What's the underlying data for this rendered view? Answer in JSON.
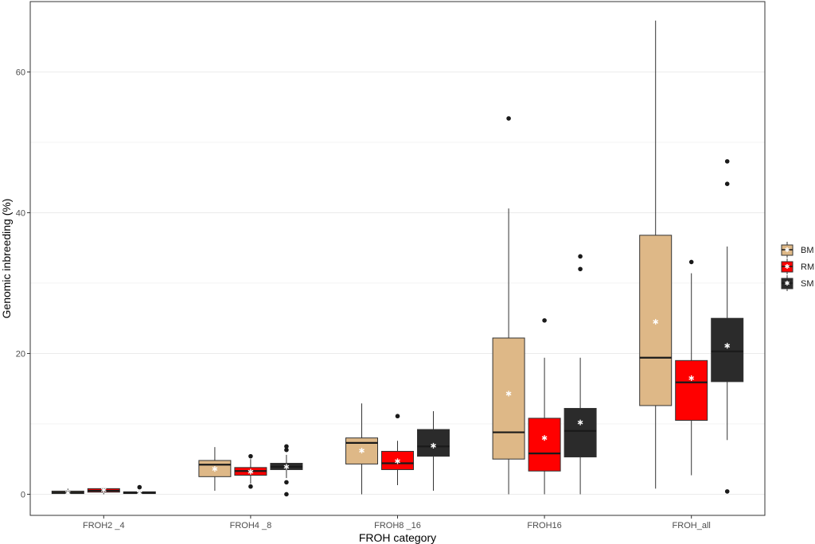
{
  "chart_data": {
    "type": "box",
    "xlabel": "FROH category",
    "ylabel": "Genomic inbreeding (%)",
    "categories": [
      "FROH2 _4",
      "FROH4 _8",
      "FROH8 _16",
      "FROH16",
      "FROH_all"
    ],
    "ylim": [
      -3,
      70
    ],
    "y_ticks": [
      0,
      20,
      40,
      60
    ],
    "minor_y_gridlines": [
      10,
      30,
      50
    ],
    "grid": true,
    "legend_position": "right",
    "series": [
      {
        "name": "BM",
        "color": "#deb887",
        "boxes": [
          {
            "min": 0.0,
            "q1": 0.1,
            "median": 0.25,
            "q3": 0.45,
            "max": 0.8,
            "mean": 0.2,
            "outliers": []
          },
          {
            "min": 0.5,
            "q1": 2.5,
            "median": 4.2,
            "q3": 4.8,
            "max": 6.7,
            "mean": 3.6,
            "outliers": []
          },
          {
            "min": 0.0,
            "q1": 4.3,
            "median": 7.3,
            "q3": 8.0,
            "max": 12.9,
            "mean": 6.2,
            "outliers": []
          },
          {
            "min": 0.0,
            "q1": 5.0,
            "median": 8.8,
            "q3": 22.2,
            "max": 40.6,
            "mean": 14.3,
            "outliers": [
              53.4
            ]
          },
          {
            "min": 0.8,
            "q1": 12.6,
            "median": 19.4,
            "q3": 36.8,
            "max": 67.3,
            "mean": 24.5,
            "outliers": []
          }
        ]
      },
      {
        "name": "RM",
        "color": "#ff0000",
        "boxes": [
          {
            "min": 0.0,
            "q1": 0.3,
            "median": 0.5,
            "q3": 0.8,
            "max": 1.0,
            "mean": 0.6,
            "outliers": []
          },
          {
            "min": 1.5,
            "q1": 2.7,
            "median": 3.3,
            "q3": 3.8,
            "max": 5.0,
            "mean": 3.2,
            "outliers": [
              1.1,
              5.4
            ]
          },
          {
            "min": 1.3,
            "q1": 3.5,
            "median": 4.4,
            "q3": 6.1,
            "max": 7.6,
            "mean": 4.7,
            "outliers": [
              11.1
            ]
          },
          {
            "min": 0.0,
            "q1": 3.3,
            "median": 5.8,
            "q3": 10.8,
            "max": 19.4,
            "mean": 8.0,
            "outliers": [
              24.7
            ]
          },
          {
            "min": 2.7,
            "q1": 10.5,
            "median": 15.9,
            "q3": 19.0,
            "max": 31.4,
            "mean": 16.5,
            "outliers": [
              33.0
            ]
          }
        ]
      },
      {
        "name": "SM",
        "color": "#2b2b2b",
        "boxes": [
          {
            "min": 0.0,
            "q1": 0.1,
            "median": 0.2,
            "q3": 0.35,
            "max": 0.6,
            "mean": 0.2,
            "outliers": [
              1.0
            ]
          },
          {
            "min": 2.3,
            "q1": 3.5,
            "median": 3.9,
            "q3": 4.4,
            "max": 5.6,
            "mean": 3.9,
            "outliers": [
              0.0,
              1.7,
              6.3,
              6.8
            ]
          },
          {
            "min": 0.5,
            "q1": 5.4,
            "median": 6.8,
            "q3": 9.2,
            "max": 11.8,
            "mean": 6.9,
            "outliers": []
          },
          {
            "min": 0.0,
            "q1": 5.3,
            "median": 9.0,
            "q3": 12.2,
            "max": 19.4,
            "mean": 10.2,
            "outliers": [
              32.0,
              33.8
            ]
          },
          {
            "min": 7.7,
            "q1": 16.0,
            "median": 20.3,
            "q3": 25.0,
            "max": 35.2,
            "mean": 21.1,
            "outliers": [
              0.4,
              44.1,
              47.3
            ]
          }
        ]
      }
    ]
  }
}
